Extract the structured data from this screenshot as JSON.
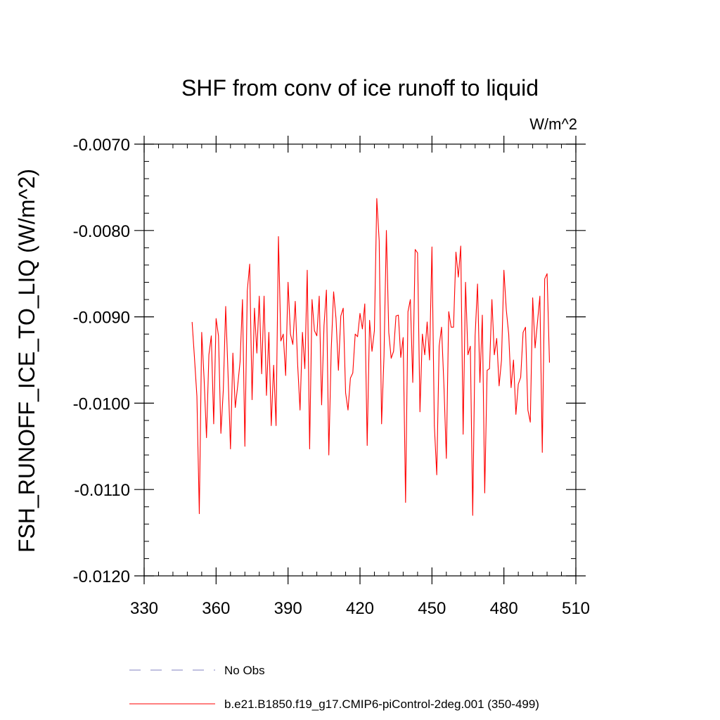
{
  "chart_data": {
    "type": "line",
    "title": "SHF from conv of ice runoff to liquid",
    "units": "W/m^2",
    "xlabel": "",
    "ylabel": "FSH_RUNOFF_ICE_TO_LIQ  (W/m^2)",
    "xlim": [
      330,
      510
    ],
    "ylim": [
      -0.012,
      -0.007
    ],
    "xticks": [
      330,
      360,
      390,
      420,
      450,
      480,
      510
    ],
    "xtick_labels": [
      "330",
      "360",
      "390",
      "420",
      "450",
      "480",
      "510"
    ],
    "yticks": [
      -0.007,
      -0.008,
      -0.009,
      -0.01,
      -0.011,
      -0.012
    ],
    "ytick_labels": [
      "-0.0070",
      "-0.0080",
      "-0.0090",
      "-0.0100",
      "-0.0110",
      "-0.0120"
    ],
    "grid": false,
    "legend_position": "bottom",
    "series": [
      {
        "name": "No Obs",
        "style": "dashed",
        "color": "#8080c0",
        "x": [],
        "values": []
      },
      {
        "name": "b.e21.B1850.f19_g17.CMIP6-piControl-2deg.001 (350-499)",
        "style": "solid",
        "color": "#ff0000",
        "x": [
          350,
          351,
          352,
          353,
          354,
          355,
          356,
          357,
          358,
          359,
          360,
          361,
          362,
          363,
          364,
          365,
          366,
          367,
          368,
          369,
          370,
          371,
          372,
          373,
          374,
          375,
          376,
          377,
          378,
          379,
          380,
          381,
          382,
          383,
          384,
          385,
          386,
          387,
          388,
          389,
          390,
          391,
          392,
          393,
          394,
          395,
          396,
          397,
          398,
          399,
          400,
          401,
          402,
          403,
          404,
          405,
          406,
          407,
          408,
          409,
          410,
          411,
          412,
          413,
          414,
          415,
          416,
          417,
          418,
          419,
          420,
          421,
          422,
          423,
          424,
          425,
          426,
          427,
          428,
          429,
          430,
          431,
          432,
          433,
          434,
          435,
          436,
          437,
          438,
          439,
          440,
          441,
          442,
          443,
          444,
          445,
          446,
          447,
          448,
          449,
          450,
          451,
          452,
          453,
          454,
          455,
          456,
          457,
          458,
          459,
          460,
          461,
          462,
          463,
          464,
          465,
          466,
          467,
          468,
          469,
          470,
          471,
          472,
          473,
          474,
          475,
          476,
          477,
          478,
          479,
          480,
          481,
          482,
          483,
          484,
          485,
          486,
          487,
          488,
          489,
          490,
          491,
          492,
          493,
          494,
          495,
          496,
          497,
          498,
          499
        ],
        "values": [
          -0.00906,
          -0.00948,
          -0.00992,
          -0.01128,
          -0.00918,
          -0.00972,
          -0.0104,
          -0.00944,
          -0.00922,
          -0.01024,
          -0.00902,
          -0.00922,
          -0.01035,
          -0.00985,
          -0.00888,
          -0.00968,
          -0.01053,
          -0.00942,
          -0.01005,
          -0.0098,
          -0.00952,
          -0.0088,
          -0.0105,
          -0.0087,
          -0.00839,
          -0.00996,
          -0.0089,
          -0.00942,
          -0.00876,
          -0.00966,
          -0.00876,
          -0.00991,
          -0.00918,
          -0.01026,
          -0.00956,
          -0.01026,
          -0.00807,
          -0.00928,
          -0.0092,
          -0.00968,
          -0.0086,
          -0.0092,
          -0.00932,
          -0.00882,
          -0.00955,
          -0.01008,
          -0.00918,
          -0.0096,
          -0.00846,
          -0.01053,
          -0.0088,
          -0.00916,
          -0.00922,
          -0.00876,
          -0.01002,
          -0.0091,
          -0.00869,
          -0.0106,
          -0.00938,
          -0.00871,
          -0.00902,
          -0.00962,
          -0.00899,
          -0.0089,
          -0.00988,
          -0.01008,
          -0.00971,
          -0.00965,
          -0.0092,
          -0.00923,
          -0.00896,
          -0.00914,
          -0.00885,
          -0.01049,
          -0.00904,
          -0.0094,
          -0.00916,
          -0.00763,
          -0.00812,
          -0.01024,
          -0.00946,
          -0.008,
          -0.00918,
          -0.00948,
          -0.0094,
          -0.00899,
          -0.00898,
          -0.00947,
          -0.00924,
          -0.01115,
          -0.00894,
          -0.0088,
          -0.00976,
          -0.00822,
          -0.00826,
          -0.0101,
          -0.0092,
          -0.00944,
          -0.00906,
          -0.0095,
          -0.00819,
          -0.01026,
          -0.01083,
          -0.00934,
          -0.00912,
          -0.0098,
          -0.01064,
          -0.00894,
          -0.00912,
          -0.00912,
          -0.00825,
          -0.00854,
          -0.00818,
          -0.01036,
          -0.0086,
          -0.00944,
          -0.00934,
          -0.0113,
          -0.00922,
          -0.00862,
          -0.00976,
          -0.00898,
          -0.01104,
          -0.00962,
          -0.0096,
          -0.0088,
          -0.00944,
          -0.00925,
          -0.0098,
          -0.0095,
          -0.00846,
          -0.00892,
          -0.0092,
          -0.00982,
          -0.0095,
          -0.01013,
          -0.00978,
          -0.0097,
          -0.00918,
          -0.00912,
          -0.01008,
          -0.01022,
          -0.00878,
          -0.00936,
          -0.00906,
          -0.00876,
          -0.01057,
          -0.00856,
          -0.0085,
          -0.00953
        ]
      }
    ]
  }
}
